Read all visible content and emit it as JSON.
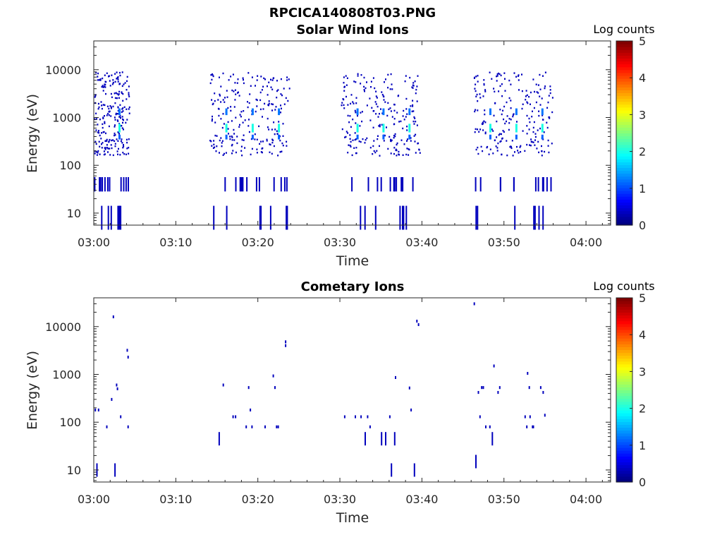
{
  "figure_title": "RPCICA140808T03.PNG",
  "chart_data": [
    {
      "type": "heatmap",
      "title": "Solar Wind Ions",
      "xlabel": "Time",
      "ylabel": "Energy (eV)",
      "x_tick_labels": [
        "03:00",
        "03:10",
        "03:20",
        "03:30",
        "03:40",
        "03:50",
        "04:00"
      ],
      "xlim_minutes_after_0300": [
        0,
        63
      ],
      "y_scale": "log",
      "ylim": [
        5.6,
        40000
      ],
      "y_tick_values": [
        10,
        100,
        1000,
        10000
      ],
      "y_tick_labels": [
        "10",
        "100",
        "1000",
        "10000"
      ],
      "colorbar": {
        "label": "Log counts",
        "range": [
          0,
          5
        ],
        "tick_labels": [
          "0",
          "1",
          "2",
          "3",
          "4",
          "5"
        ],
        "colormap": "jet"
      },
      "bursts_minutes": [
        [
          0,
          4.3
        ],
        [
          14.1,
          23.8
        ],
        [
          30.1,
          39.7
        ],
        [
          46.3,
          55.9
        ]
      ],
      "peak_energy_eV": 600,
      "peak_log_counts": 2.0,
      "background_log_counts": 0.3
    },
    {
      "type": "heatmap",
      "title": "Cometary Ions",
      "xlabel": "Time",
      "ylabel": "Energy (eV)",
      "x_tick_labels": [
        "03:00",
        "03:10",
        "03:20",
        "03:30",
        "03:40",
        "03:50",
        "04:00"
      ],
      "xlim_minutes_after_0300": [
        0,
        63
      ],
      "y_scale": "log",
      "ylim": [
        5.6,
        40000
      ],
      "y_tick_values": [
        10,
        100,
        1000,
        10000
      ],
      "y_tick_labels": [
        "10",
        "100",
        "1000",
        "10000"
      ],
      "colorbar": {
        "label": "Log counts",
        "range": [
          0,
          5
        ],
        "tick_labels": [
          "0",
          "1",
          "2",
          "3",
          "4",
          "5"
        ],
        "colormap": "jet"
      },
      "points": [
        [
          0.1,
          180
        ],
        [
          0.5,
          180
        ],
        [
          0.3,
          10
        ],
        [
          2.5,
          10
        ],
        [
          2.3,
          16000
        ],
        [
          2.1,
          300
        ],
        [
          2.7,
          600
        ],
        [
          2.8,
          500
        ],
        [
          3.2,
          130
        ],
        [
          4.0,
          3200
        ],
        [
          4.1,
          2300
        ],
        [
          1.5,
          80
        ],
        [
          4.1,
          80
        ],
        [
          15.2,
          45
        ],
        [
          15.7,
          600
        ],
        [
          16.9,
          130
        ],
        [
          17.2,
          130
        ],
        [
          18.5,
          80
        ],
        [
          18.8,
          530
        ],
        [
          19.0,
          180
        ],
        [
          19.2,
          80
        ],
        [
          20.8,
          80
        ],
        [
          21.8,
          930
        ],
        [
          22.0,
          530
        ],
        [
          22.2,
          80
        ],
        [
          22.4,
          80
        ],
        [
          23.3,
          4800
        ],
        [
          23.3,
          4000
        ],
        [
          30.5,
          130
        ],
        [
          31.8,
          130
        ],
        [
          32.5,
          130
        ],
        [
          33.0,
          45
        ],
        [
          33.3,
          130
        ],
        [
          33.6,
          80
        ],
        [
          35.0,
          45
        ],
        [
          35.5,
          45
        ],
        [
          36.0,
          130
        ],
        [
          36.2,
          10
        ],
        [
          36.6,
          45
        ],
        [
          36.7,
          860
        ],
        [
          38.4,
          520
        ],
        [
          38.6,
          180
        ],
        [
          39.0,
          10
        ],
        [
          39.3,
          13000
        ],
        [
          39.5,
          11000
        ],
        [
          46.3,
          30000
        ],
        [
          46.5,
          15
        ],
        [
          46.8,
          420
        ],
        [
          47.2,
          530
        ],
        [
          47.4,
          530
        ],
        [
          47.0,
          130
        ],
        [
          47.7,
          80
        ],
        [
          48.2,
          80
        ],
        [
          48.5,
          45
        ],
        [
          48.7,
          1500
        ],
        [
          49.2,
          420
        ],
        [
          49.4,
          530
        ],
        [
          52.5,
          130
        ],
        [
          52.7,
          80
        ],
        [
          52.8,
          1050
        ],
        [
          53.0,
          530
        ],
        [
          53.1,
          130
        ],
        [
          53.4,
          80
        ],
        [
          53.5,
          80
        ],
        [
          54.4,
          530
        ],
        [
          54.7,
          420
        ],
        [
          54.9,
          140
        ]
      ]
    }
  ]
}
